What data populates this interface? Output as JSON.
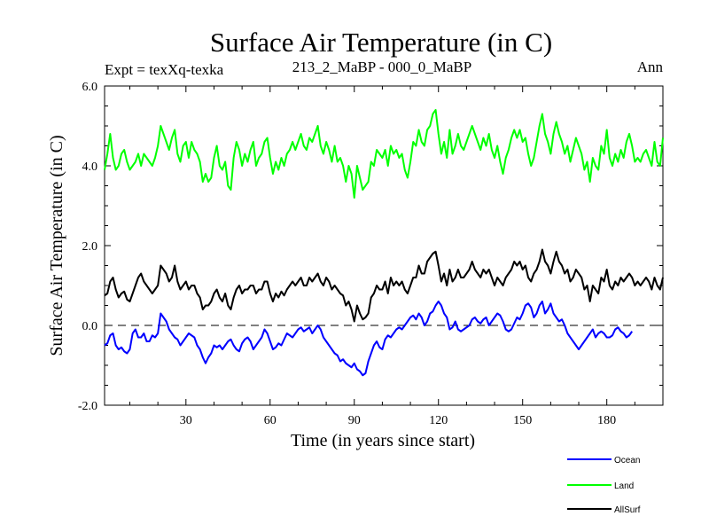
{
  "chart_data": {
    "type": "line",
    "title": "Surface Air Temperature (in C)",
    "subtitle_left": "Expt = texXq-texka",
    "subtitle_center": "213_2_MaBP - 000_0_MaBP",
    "subtitle_right": "Ann",
    "xlabel": "Time (in years since start)",
    "ylabel": "Surface Air Temperature (in C)",
    "xlim": [
      1,
      200
    ],
    "ylim": [
      -2.0,
      6.0
    ],
    "x_ticks": [
      30,
      60,
      90,
      120,
      150,
      180
    ],
    "x_tick_labels": [
      "30",
      "60",
      "90",
      "120",
      "150",
      "180"
    ],
    "y_ticks": [
      -2.0,
      0.0,
      2.0,
      4.0,
      6.0
    ],
    "y_tick_labels": [
      "-2.0",
      "0.0",
      "2.0",
      "4.0",
      "6.0"
    ],
    "reference_line": 0.0,
    "legend_position": "bottom-right",
    "x_start": 1,
    "x_step": 1,
    "series": [
      {
        "name": "Ocean",
        "color": "#0000ff",
        "values": [
          -0.5,
          -0.45,
          -0.25,
          -0.2,
          -0.5,
          -0.6,
          -0.55,
          -0.65,
          -0.7,
          -0.6,
          -0.2,
          -0.1,
          -0.3,
          -0.3,
          -0.2,
          -0.4,
          -0.4,
          -0.25,
          -0.3,
          -0.2,
          0.3,
          0.2,
          0.1,
          -0.1,
          -0.2,
          -0.3,
          -0.35,
          -0.5,
          -0.4,
          -0.3,
          -0.2,
          -0.25,
          -0.3,
          -0.5,
          -0.6,
          -0.8,
          -0.95,
          -0.8,
          -0.7,
          -0.5,
          -0.55,
          -0.5,
          -0.6,
          -0.5,
          -0.4,
          -0.35,
          -0.5,
          -0.6,
          -0.65,
          -0.45,
          -0.35,
          -0.3,
          -0.4,
          -0.6,
          -0.5,
          -0.4,
          -0.3,
          -0.1,
          -0.2,
          -0.4,
          -0.6,
          -0.55,
          -0.45,
          -0.5,
          -0.35,
          -0.2,
          -0.25,
          -0.3,
          -0.2,
          -0.1,
          -0.05,
          -0.15,
          -0.1,
          -0.05,
          -0.2,
          -0.1,
          0.0,
          -0.1,
          -0.3,
          -0.4,
          -0.5,
          -0.6,
          -0.7,
          -0.75,
          -0.9,
          -0.85,
          -0.95,
          -1.0,
          -1.05,
          -0.95,
          -1.1,
          -1.15,
          -1.25,
          -1.2,
          -0.9,
          -0.7,
          -0.5,
          -0.4,
          -0.55,
          -0.6,
          -0.35,
          -0.25,
          -0.3,
          -0.2,
          -0.1,
          -0.05,
          -0.1,
          0.0,
          0.1,
          0.2,
          0.25,
          0.15,
          0.3,
          0.2,
          0.0,
          0.1,
          0.3,
          0.35,
          0.5,
          0.6,
          0.5,
          0.3,
          0.2,
          -0.1,
          -0.05,
          0.1,
          -0.1,
          -0.15,
          -0.1,
          -0.05,
          0.0,
          0.15,
          0.2,
          0.1,
          0.05,
          0.15,
          0.2,
          0.0,
          0.1,
          0.2,
          0.3,
          0.25,
          0.1,
          -0.1,
          -0.15,
          -0.1,
          0.05,
          0.2,
          0.15,
          0.3,
          0.5,
          0.55,
          0.45,
          0.2,
          0.3,
          0.5,
          0.6,
          0.3,
          0.4,
          0.55,
          0.3,
          0.2,
          0.1,
          0.15,
          0.0,
          -0.2,
          -0.3,
          -0.4,
          -0.5,
          -0.6,
          -0.5,
          -0.4,
          -0.3,
          -0.2,
          -0.1,
          -0.3,
          -0.2,
          -0.15,
          -0.2,
          -0.3,
          -0.3,
          -0.25,
          -0.1,
          -0.05,
          -0.15,
          -0.2,
          -0.3,
          -0.25,
          -0.15
        ]
      },
      {
        "name": "Land",
        "color": "#00ff00",
        "values": [
          3.9,
          4.3,
          4.8,
          4.2,
          3.9,
          4.0,
          4.3,
          4.4,
          4.1,
          3.9,
          4.0,
          4.1,
          4.3,
          4.0,
          4.3,
          4.2,
          4.1,
          4.0,
          4.2,
          4.5,
          5.0,
          4.8,
          4.6,
          4.4,
          4.7,
          4.9,
          4.3,
          4.1,
          4.5,
          4.6,
          4.2,
          4.6,
          4.4,
          4.3,
          4.1,
          3.6,
          3.8,
          3.6,
          3.7,
          4.2,
          4.5,
          4.0,
          3.9,
          4.1,
          3.5,
          3.4,
          4.2,
          4.6,
          4.4,
          4.0,
          4.3,
          4.1,
          4.4,
          4.6,
          4.0,
          4.2,
          4.3,
          4.6,
          4.7,
          4.2,
          3.8,
          4.1,
          3.9,
          4.2,
          4.0,
          4.3,
          4.4,
          4.6,
          4.4,
          4.6,
          4.8,
          4.5,
          4.4,
          4.7,
          4.6,
          4.8,
          5.0,
          4.5,
          4.3,
          4.6,
          4.4,
          4.1,
          4.5,
          4.1,
          4.2,
          4.0,
          3.6,
          4.0,
          3.8,
          3.2,
          4.0,
          3.7,
          3.4,
          3.5,
          3.6,
          4.1,
          4.0,
          4.4,
          4.3,
          4.2,
          4.4,
          4.0,
          4.5,
          4.3,
          4.4,
          4.2,
          4.3,
          3.9,
          3.7,
          4.1,
          4.6,
          4.5,
          4.9,
          4.6,
          4.5,
          4.9,
          5.0,
          5.3,
          5.4,
          4.8,
          4.3,
          4.6,
          4.2,
          4.9,
          4.3,
          4.5,
          4.8,
          4.5,
          4.4,
          4.6,
          4.8,
          5.0,
          4.8,
          4.6,
          4.4,
          4.7,
          4.5,
          4.8,
          4.4,
          4.2,
          4.5,
          4.1,
          3.8,
          4.2,
          4.4,
          4.7,
          4.9,
          4.7,
          4.9,
          4.6,
          4.7,
          4.3,
          4.0,
          4.2,
          4.6,
          5.0,
          5.3,
          4.8,
          4.6,
          4.3,
          4.8,
          5.1,
          4.8,
          4.6,
          4.3,
          4.5,
          4.1,
          4.4,
          4.7,
          4.5,
          4.3,
          3.9,
          4.1,
          3.6,
          4.2,
          4.0,
          3.9,
          4.5,
          4.3,
          4.9,
          4.2,
          4.0,
          4.3,
          4.1,
          4.4,
          4.2,
          4.6,
          4.8,
          4.5,
          4.1,
          4.2,
          4.1,
          4.3,
          4.4,
          4.2,
          4.0,
          4.6,
          4.1,
          4.0,
          4.7
        ]
      },
      {
        "name": "AllSurf",
        "color": "#000000",
        "values": [
          0.75,
          0.8,
          1.1,
          1.2,
          0.9,
          0.7,
          0.8,
          0.85,
          0.65,
          0.6,
          0.8,
          1.0,
          1.2,
          1.3,
          1.1,
          1.0,
          0.9,
          0.8,
          0.9,
          1.0,
          1.5,
          1.4,
          1.3,
          1.1,
          1.2,
          1.5,
          1.1,
          0.9,
          1.0,
          1.1,
          0.9,
          1.0,
          1.0,
          0.8,
          0.7,
          0.4,
          0.5,
          0.5,
          0.6,
          0.8,
          0.9,
          0.7,
          0.6,
          0.8,
          0.5,
          0.4,
          0.7,
          0.9,
          1.0,
          0.8,
          0.9,
          0.9,
          1.0,
          1.0,
          0.8,
          0.9,
          0.9,
          1.1,
          1.1,
          0.8,
          0.6,
          0.8,
          0.7,
          0.85,
          0.75,
          0.9,
          1.0,
          1.1,
          1.0,
          1.1,
          1.2,
          1.0,
          1.0,
          1.2,
          1.1,
          1.2,
          1.3,
          1.1,
          1.0,
          1.2,
          1.1,
          0.9,
          1.0,
          0.9,
          0.8,
          0.75,
          0.5,
          0.6,
          0.4,
          0.1,
          0.5,
          0.3,
          0.15,
          0.2,
          0.3,
          0.7,
          0.8,
          1.0,
          0.9,
          0.9,
          1.1,
          0.8,
          1.2,
          1.0,
          1.1,
          1.0,
          1.1,
          0.9,
          0.8,
          1.0,
          1.2,
          1.2,
          1.5,
          1.3,
          1.3,
          1.6,
          1.7,
          1.8,
          1.85,
          1.5,
          1.1,
          1.3,
          1.0,
          1.4,
          1.1,
          1.2,
          1.4,
          1.2,
          1.2,
          1.3,
          1.4,
          1.6,
          1.4,
          1.3,
          1.2,
          1.4,
          1.3,
          1.4,
          1.2,
          1.0,
          1.2,
          1.1,
          1.0,
          1.2,
          1.3,
          1.4,
          1.6,
          1.5,
          1.6,
          1.4,
          1.5,
          1.2,
          1.1,
          1.3,
          1.4,
          1.6,
          1.9,
          1.6,
          1.5,
          1.3,
          1.6,
          1.85,
          1.6,
          1.5,
          1.3,
          1.4,
          1.1,
          1.2,
          1.4,
          1.3,
          1.2,
          0.9,
          1.0,
          0.6,
          1.0,
          0.9,
          0.8,
          1.2,
          1.1,
          1.4,
          1.0,
          0.9,
          1.1,
          1.0,
          1.2,
          1.1,
          1.2,
          1.3,
          1.2,
          1.0,
          1.1,
          1.0,
          1.1,
          1.2,
          1.1,
          0.9,
          1.2,
          1.0,
          0.9,
          1.2
        ]
      }
    ]
  }
}
